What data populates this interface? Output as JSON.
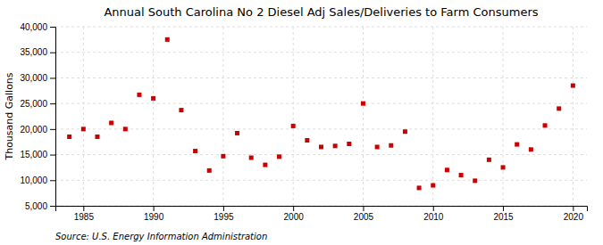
{
  "chart_data": {
    "type": "scatter",
    "title": "Annual South Carolina No 2 Diesel Adj Sales/Deliveries to Farm Consumers",
    "ylabel": "Thousand Gallons",
    "source": "Source: U.S. Energy Information Administration",
    "x": [
      1984,
      1985,
      1986,
      1987,
      1988,
      1989,
      1990,
      1991,
      1992,
      1993,
      1994,
      1995,
      1996,
      1997,
      1998,
      1999,
      2000,
      2001,
      2002,
      2003,
      2004,
      2005,
      2006,
      2007,
      2008,
      2009,
      2010,
      2011,
      2012,
      2013,
      2014,
      2015,
      2016,
      2017,
      2018,
      2019,
      2020
    ],
    "values": [
      18500,
      20000,
      18500,
      21200,
      20000,
      26700,
      26000,
      37500,
      23700,
      15700,
      11900,
      14700,
      19200,
      14400,
      13000,
      14600,
      20600,
      17800,
      16500,
      16700,
      17100,
      25000,
      16500,
      16800,
      19500,
      8500,
      9000,
      12000,
      11000,
      9900,
      14000,
      12500,
      17000,
      16000,
      20700,
      24000,
      28500
    ],
    "color": "#cc0000",
    "marker": "square",
    "xlim": [
      1983,
      2021
    ],
    "ylim": [
      5000,
      40000
    ],
    "xticks": [
      1985,
      1990,
      1995,
      2000,
      2005,
      2010,
      2015,
      2020
    ],
    "yticks": [
      {
        "value": 5000,
        "label": "5,000"
      },
      {
        "value": 10000,
        "label": "10,000"
      },
      {
        "value": 15000,
        "label": "15,000"
      },
      {
        "value": 20000,
        "label": "20,000"
      },
      {
        "value": 25000,
        "label": "25,000"
      },
      {
        "value": 30000,
        "label": "30,000"
      },
      {
        "value": 35000,
        "label": "35,000"
      },
      {
        "value": 40000,
        "label": "40,000"
      }
    ],
    "grid": true
  }
}
